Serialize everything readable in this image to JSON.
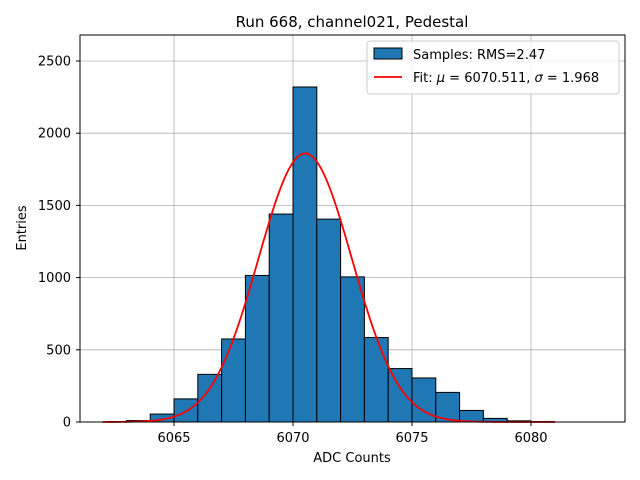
{
  "chart_data": {
    "type": "bar",
    "title": "Run 668, channel021, Pedestal",
    "xlabel": "ADC Counts",
    "ylabel": "Entries",
    "xlim": [
      6061.05,
      6083.95
    ],
    "ylim": [
      0,
      2680
    ],
    "xticks": [
      6065,
      6070,
      6075,
      6080
    ],
    "yticks": [
      0,
      500,
      1000,
      1500,
      2000,
      2500
    ],
    "grid": true,
    "legend_position": "top-right",
    "bar_color": "#1f77b4",
    "fit_color": "#ff0000",
    "bins": [
      {
        "x0": 6063,
        "x1": 6064,
        "count": 10
      },
      {
        "x0": 6064,
        "x1": 6065,
        "count": 55
      },
      {
        "x0": 6065,
        "x1": 6066,
        "count": 160
      },
      {
        "x0": 6066,
        "x1": 6067,
        "count": 330
      },
      {
        "x0": 6067,
        "x1": 6068,
        "count": 575
      },
      {
        "x0": 6068,
        "x1": 6069,
        "count": 1015
      },
      {
        "x0": 6069,
        "x1": 6070,
        "count": 1440
      },
      {
        "x0": 6070,
        "x1": 6071,
        "count": 2320
      },
      {
        "x0": 6071,
        "x1": 6072,
        "count": 1405
      },
      {
        "x0": 6072,
        "x1": 6073,
        "count": 1005
      },
      {
        "x0": 6073,
        "x1": 6074,
        "count": 585
      },
      {
        "x0": 6074,
        "x1": 6075,
        "count": 370
      },
      {
        "x0": 6075,
        "x1": 6076,
        "count": 305
      },
      {
        "x0": 6076,
        "x1": 6077,
        "count": 205
      },
      {
        "x0": 6077,
        "x1": 6078,
        "count": 80
      },
      {
        "x0": 6078,
        "x1": 6079,
        "count": 25
      },
      {
        "x0": 6079,
        "x1": 6080,
        "count": 8
      },
      {
        "x0": 6080,
        "x1": 6081,
        "count": 3
      }
    ],
    "fit": {
      "model": "gaussian",
      "mu": 6070.511,
      "sigma": 1.968,
      "amplitude": 1860,
      "x_range": [
        6062,
        6081
      ]
    },
    "legend": [
      {
        "kind": "bar",
        "label": "Samples: RMS=2.47"
      },
      {
        "kind": "line",
        "label_prefix": "Fit: ",
        "label_mu_symbol": "μ",
        "label_mu_value": " = 6070.511, ",
        "label_sigma_symbol": "σ",
        "label_sigma_value": " = 1.968"
      }
    ]
  }
}
